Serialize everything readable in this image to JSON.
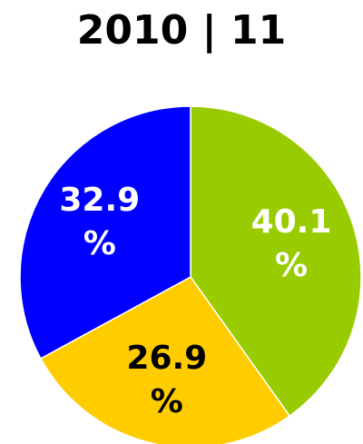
{
  "chart_data": {
    "type": "pie",
    "title": "2010 | 11",
    "categories": [
      null,
      null,
      null
    ],
    "values": [
      40.1,
      26.9,
      32.9
    ],
    "value_labels": [
      "40.1 %",
      "26.9 %",
      "32.9 %"
    ],
    "colors": [
      "#99cc00",
      "#ffcc00",
      "#0000ff"
    ],
    "label_colors": [
      "#ffffff",
      "#000000",
      "#ffffff"
    ]
  }
}
